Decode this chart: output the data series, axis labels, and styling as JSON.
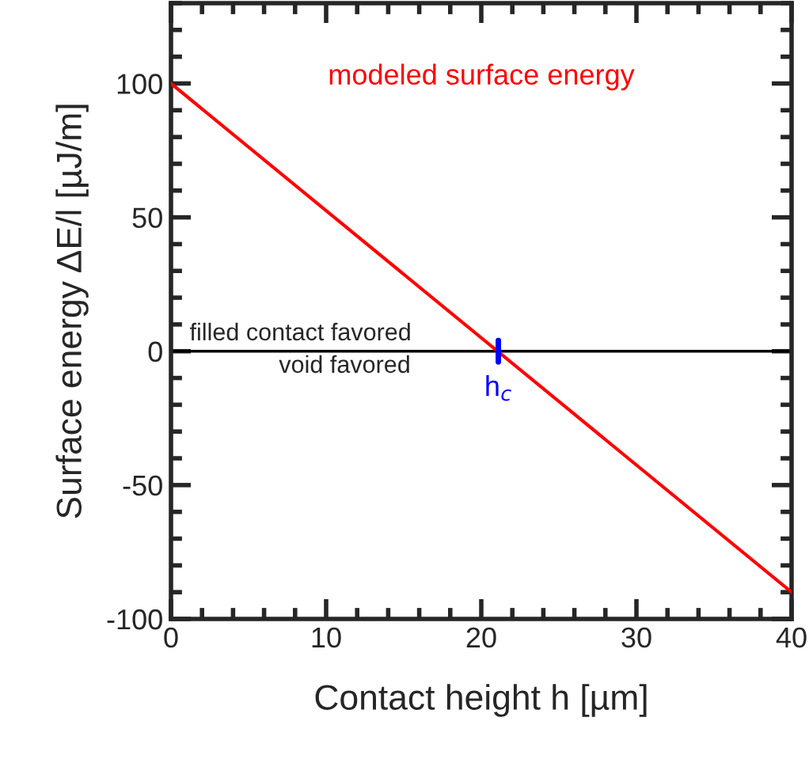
{
  "chart_data": {
    "type": "line",
    "x": [
      0,
      40
    ],
    "series": [
      {
        "name": "modeled surface energy",
        "color": "#ff0000",
        "values": [
          100,
          -90
        ]
      }
    ],
    "xlabel": "Contact height h [µm]",
    "ylabel": "Surface energy ΔE/l [µJ/m]",
    "xlim": [
      0,
      40
    ],
    "ylim": [
      -100,
      130
    ],
    "xticks": [
      0,
      10,
      20,
      30,
      40
    ],
    "yticks": [
      -100,
      -50,
      0,
      50,
      100
    ],
    "ref_lines": [
      {
        "axis": "y",
        "value": 0,
        "color": "#000000"
      }
    ],
    "annotations": [
      "filled contact favored",
      "void favored",
      {
        "text": "h$_{c}$",
        "x": 21.1,
        "y": 0
      }
    ],
    "grid": false,
    "legend": false,
    "marker": "none",
    "line_style": "solid"
  }
}
